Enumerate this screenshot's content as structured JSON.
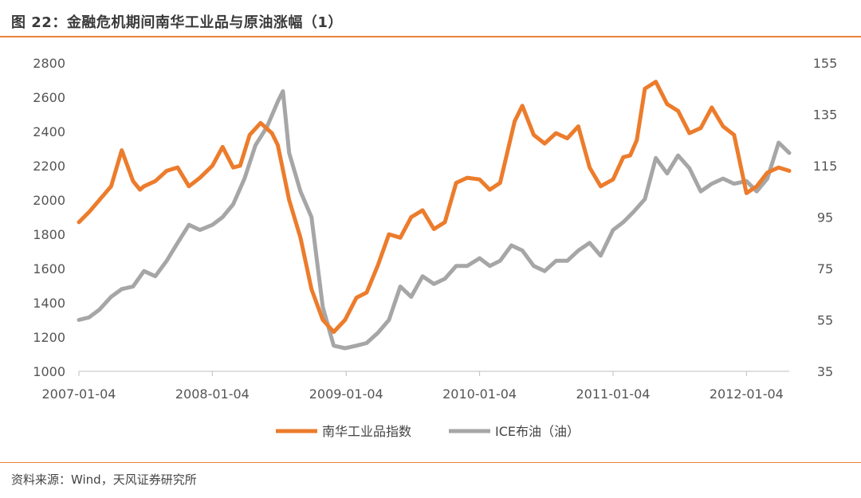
{
  "header": {
    "title": "图 22：金融危机期间南华工业品与原油涨幅（1）"
  },
  "footer": {
    "source": "资料来源：Wind，天风证券研究所"
  },
  "colors": {
    "accent": "#e8833a",
    "series_nanhua": "#ec7c2c",
    "series_ice": "#a6a6a6",
    "axis": "#bfbfbf"
  },
  "chart_data": {
    "type": "line",
    "title": "",
    "xlabel": "",
    "ylabel": "",
    "x_tick_labels": [
      "2007-01-04",
      "2008-01-04",
      "2009-01-04",
      "2010-01-04",
      "2011-01-04",
      "2012-01-04"
    ],
    "xlim": [
      "2007-01-04",
      "2012-04-30"
    ],
    "y_left": {
      "ticks": [
        1000,
        1200,
        1400,
        1600,
        1800,
        2000,
        2200,
        2400,
        2600,
        2800
      ],
      "lim": [
        1000,
        2800
      ]
    },
    "y_right": {
      "ticks": [
        35,
        55,
        75,
        95,
        115,
        135,
        155
      ],
      "lim": [
        35,
        155
      ]
    },
    "legend": {
      "placement": "bottom-center"
    },
    "series": [
      {
        "name": "南华工业品指数",
        "axis": "left",
        "color": "#ec7c2c",
        "x": [
          "2007-01-04",
          "2007-02-01",
          "2007-03-01",
          "2007-04-02",
          "2007-05-01",
          "2007-06-01",
          "2007-06-20",
          "2007-07-01",
          "2007-08-01",
          "2007-09-01",
          "2007-10-01",
          "2007-11-01",
          "2007-12-01",
          "2008-01-04",
          "2008-02-01",
          "2008-03-01",
          "2008-03-20",
          "2008-04-15",
          "2008-05-15",
          "2008-06-15",
          "2008-07-01",
          "2008-08-01",
          "2008-09-01",
          "2008-10-01",
          "2008-11-01",
          "2008-12-01",
          "2009-01-01",
          "2009-02-01",
          "2009-03-01",
          "2009-04-01",
          "2009-05-01",
          "2009-06-01",
          "2009-07-01",
          "2009-08-01",
          "2009-09-01",
          "2009-10-01",
          "2009-11-01",
          "2009-12-01",
          "2010-01-04",
          "2010-02-01",
          "2010-03-01",
          "2010-04-10",
          "2010-05-01",
          "2010-06-01",
          "2010-07-01",
          "2010-08-01",
          "2010-09-01",
          "2010-10-01",
          "2010-11-01",
          "2010-12-01",
          "2011-01-04",
          "2011-02-01",
          "2011-02-20",
          "2011-03-10",
          "2011-04-01",
          "2011-05-01",
          "2011-06-01",
          "2011-07-01",
          "2011-08-01",
          "2011-09-01",
          "2011-10-01",
          "2011-11-01",
          "2011-12-01",
          "2012-01-04",
          "2012-02-01",
          "2012-03-01",
          "2012-04-01",
          "2012-04-30"
        ],
        "y": [
          1870,
          1930,
          2000,
          2080,
          2290,
          2110,
          2060,
          2080,
          2110,
          2170,
          2190,
          2080,
          2130,
          2200,
          2310,
          2190,
          2200,
          2380,
          2450,
          2390,
          2320,
          2000,
          1780,
          1480,
          1300,
          1230,
          1300,
          1430,
          1460,
          1620,
          1800,
          1780,
          1900,
          1940,
          1830,
          1870,
          2100,
          2130,
          2120,
          2060,
          2100,
          2460,
          2550,
          2380,
          2330,
          2390,
          2360,
          2430,
          2190,
          2080,
          2120,
          2250,
          2260,
          2350,
          2650,
          2690,
          2560,
          2520,
          2390,
          2420,
          2540,
          2430,
          2380,
          2040,
          2080,
          2160,
          2190,
          2170
        ]
      },
      {
        "name": "ICE布油（油）",
        "axis": "right",
        "color": "#a6a6a6",
        "x": [
          "2007-01-04",
          "2007-02-01",
          "2007-03-01",
          "2007-04-02",
          "2007-05-01",
          "2007-06-01",
          "2007-07-01",
          "2007-08-01",
          "2007-09-01",
          "2007-10-01",
          "2007-11-01",
          "2007-12-01",
          "2008-01-04",
          "2008-02-01",
          "2008-03-01",
          "2008-04-01",
          "2008-05-01",
          "2008-06-01",
          "2008-07-01",
          "2008-07-15",
          "2008-08-01",
          "2008-09-01",
          "2008-10-01",
          "2008-11-01",
          "2008-12-01",
          "2009-01-01",
          "2009-02-01",
          "2009-03-01",
          "2009-04-01",
          "2009-05-01",
          "2009-06-01",
          "2009-07-01",
          "2009-08-01",
          "2009-09-01",
          "2009-10-01",
          "2009-11-01",
          "2009-12-01",
          "2010-01-04",
          "2010-02-01",
          "2010-03-01",
          "2010-04-01",
          "2010-05-01",
          "2010-06-01",
          "2010-07-01",
          "2010-08-01",
          "2010-09-01",
          "2010-10-01",
          "2010-11-01",
          "2010-12-01",
          "2011-01-04",
          "2011-02-01",
          "2011-03-01",
          "2011-04-01",
          "2011-05-01",
          "2011-06-01",
          "2011-07-01",
          "2011-08-01",
          "2011-09-01",
          "2011-10-01",
          "2011-11-01",
          "2011-12-01",
          "2012-01-04",
          "2012-02-01",
          "2012-03-01",
          "2012-04-01",
          "2012-04-30"
        ],
        "y": [
          55,
          56,
          59,
          64,
          67,
          68,
          74,
          72,
          78,
          85,
          92,
          90,
          92,
          95,
          100,
          110,
          123,
          130,
          140,
          144,
          120,
          105,
          95,
          60,
          45,
          44,
          45,
          46,
          50,
          55,
          68,
          64,
          72,
          69,
          71,
          76,
          76,
          79,
          76,
          78,
          84,
          82,
          76,
          74,
          78,
          78,
          82,
          85,
          80,
          90,
          93,
          97,
          102,
          118,
          112,
          119,
          114,
          105,
          108,
          110,
          108,
          109,
          105,
          110,
          124,
          120
        ]
      }
    ]
  }
}
